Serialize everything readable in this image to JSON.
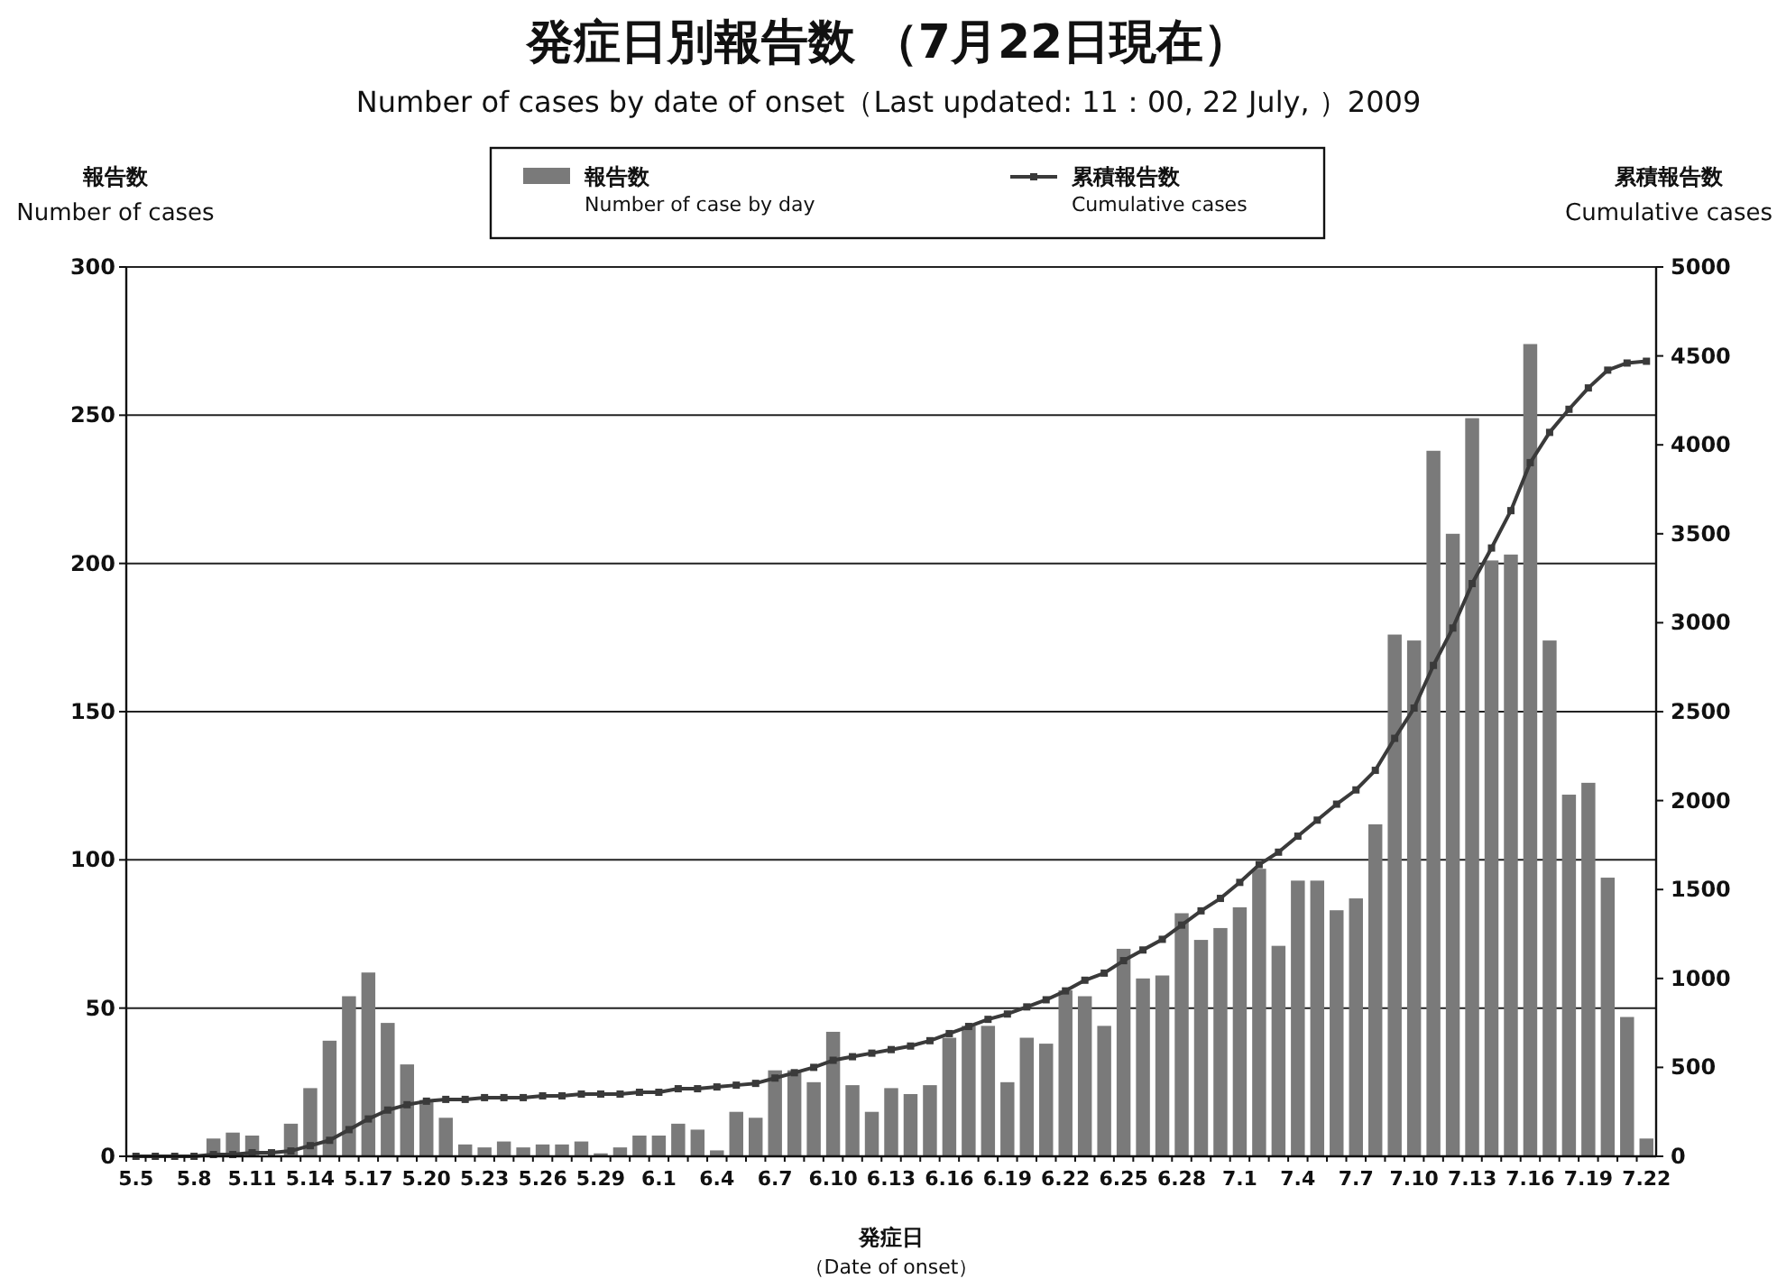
{
  "chart_data": {
    "type": "bar",
    "title": "発症日別報告数 （7月22日現在）",
    "subtitle": "Number of cases by date of onset（Last updated: 11：00, 22 July, ）2009",
    "xlabel": "発症日",
    "annotations": [
      "（Date of onset）"
    ],
    "ylabel": "報告数\nNumber of cases",
    "y2label": "累積報告数\nCumulative cases",
    "categories": [
      "5.5",
      null,
      null,
      "5.8",
      null,
      null,
      "5.11",
      null,
      null,
      "5.14",
      null,
      null,
      "5.17",
      null,
      null,
      "5.20",
      null,
      null,
      "5.23",
      null,
      null,
      "5.26",
      null,
      null,
      "5.29",
      null,
      null,
      "6.1",
      null,
      null,
      "6.4",
      null,
      null,
      "6.7",
      null,
      null,
      "6.10",
      null,
      null,
      "6.13",
      null,
      null,
      "6.16",
      null,
      null,
      "6.19",
      null,
      null,
      "6.22",
      null,
      null,
      "6.25",
      null,
      null,
      "6.28",
      null,
      null,
      "7.1",
      null,
      null,
      "7.4",
      null,
      null,
      "7.7",
      null,
      null,
      "7.10",
      null,
      null,
      "7.13",
      null,
      null,
      "7.16",
      null,
      null,
      "7.19",
      null,
      null,
      "7.22"
    ],
    "series": [
      {
        "name": "報告数\nNumber of case by day",
        "color": "#7a7a7a",
        "values": [
          null,
          null,
          null,
          null,
          6,
          8,
          7,
          null,
          11,
          23,
          39,
          54,
          62,
          45,
          31,
          19,
          13,
          4,
          3,
          5,
          3,
          4,
          4,
          5,
          1,
          3,
          7,
          7,
          11,
          9,
          2,
          15,
          13,
          29,
          29,
          25,
          42,
          24,
          15,
          23,
          21,
          24,
          40,
          44,
          44,
          25,
          40,
          38,
          56,
          54,
          44,
          70,
          60,
          61,
          82,
          73,
          77,
          84,
          97,
          71,
          93,
          93,
          83,
          87,
          112,
          176,
          174,
          238,
          210,
          249,
          201,
          203,
          274,
          174,
          122,
          126,
          94,
          47,
          6
        ]
      },
      {
        "name": "累積報告数\nCumulative cases",
        "type": "line",
        "axis": "y2",
        "color": "#3a3a3a",
        "values": [
          0,
          0,
          0,
          0,
          10,
          10,
          20,
          20,
          30,
          60,
          90,
          150,
          210,
          260,
          290,
          310,
          320,
          320,
          330,
          330,
          330,
          340,
          340,
          350,
          350,
          350,
          360,
          360,
          380,
          380,
          390,
          400,
          410,
          440,
          470,
          500,
          540,
          560,
          580,
          600,
          620,
          650,
          690,
          730,
          770,
          800,
          840,
          880,
          930,
          990,
          1030,
          1100,
          1160,
          1220,
          1300,
          1380,
          1450,
          1540,
          1640,
          1710,
          1800,
          1890,
          1980,
          2060,
          2170,
          2350,
          2520,
          2760,
          2970,
          3220,
          3420,
          3630,
          3900,
          4070,
          4200,
          4320,
          4420,
          4460,
          4470
        ]
      }
    ],
    "ylim": [
      0,
      300
    ],
    "yticks": [
      0,
      50,
      100,
      150,
      200,
      250,
      300
    ],
    "y2lim": [
      0,
      5000
    ],
    "y2ticks": [
      0,
      500,
      1000,
      1500,
      2000,
      2500,
      3000,
      3500,
      4000,
      4500,
      5000
    ],
    "grid": "y",
    "legend": "top",
    "marker": "square",
    "line_style": "solid"
  }
}
